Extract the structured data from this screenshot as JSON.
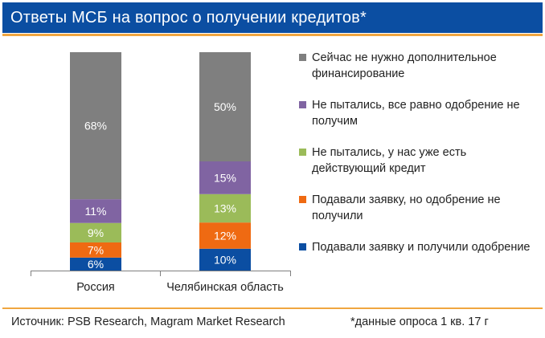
{
  "header": {
    "title": "Ответы МСБ на вопрос о получении кредитов*"
  },
  "chart_data": {
    "type": "bar",
    "stacked": true,
    "percent_stacked": true,
    "categories": [
      "Россия",
      "Челябинская область"
    ],
    "series": [
      {
        "name": "Подавали заявку и получили одобрение",
        "color": "#0b4ea2",
        "values": [
          6,
          10
        ],
        "labels": [
          "6%",
          "10%"
        ]
      },
      {
        "name": "Подавали заявку, но одобрение  не получили",
        "color": "#ef6a12",
        "values": [
          7,
          12
        ],
        "labels": [
          "7%",
          "12%"
        ]
      },
      {
        "name": "Не пытались, у нас уже есть действующий кредит",
        "color": "#9bbb59",
        "values": [
          9,
          13
        ],
        "labels": [
          "9%",
          "13%"
        ]
      },
      {
        "name": "Не пытались, все равно одобрение не получим",
        "color": "#8064a2",
        "values": [
          11,
          15
        ],
        "labels": [
          "11%",
          "15%"
        ]
      },
      {
        "name": "Сейчас не нужно дополнительное финансирование",
        "color": "#7f7f7f",
        "values": [
          68,
          50
        ],
        "labels": [
          "68%",
          "50%"
        ]
      }
    ],
    "legend_position": "right",
    "grid": false
  },
  "footer": {
    "source": "Источник: PSB Research, Magram Market Research",
    "note": "*данные опроса 1 кв. 17 г"
  }
}
